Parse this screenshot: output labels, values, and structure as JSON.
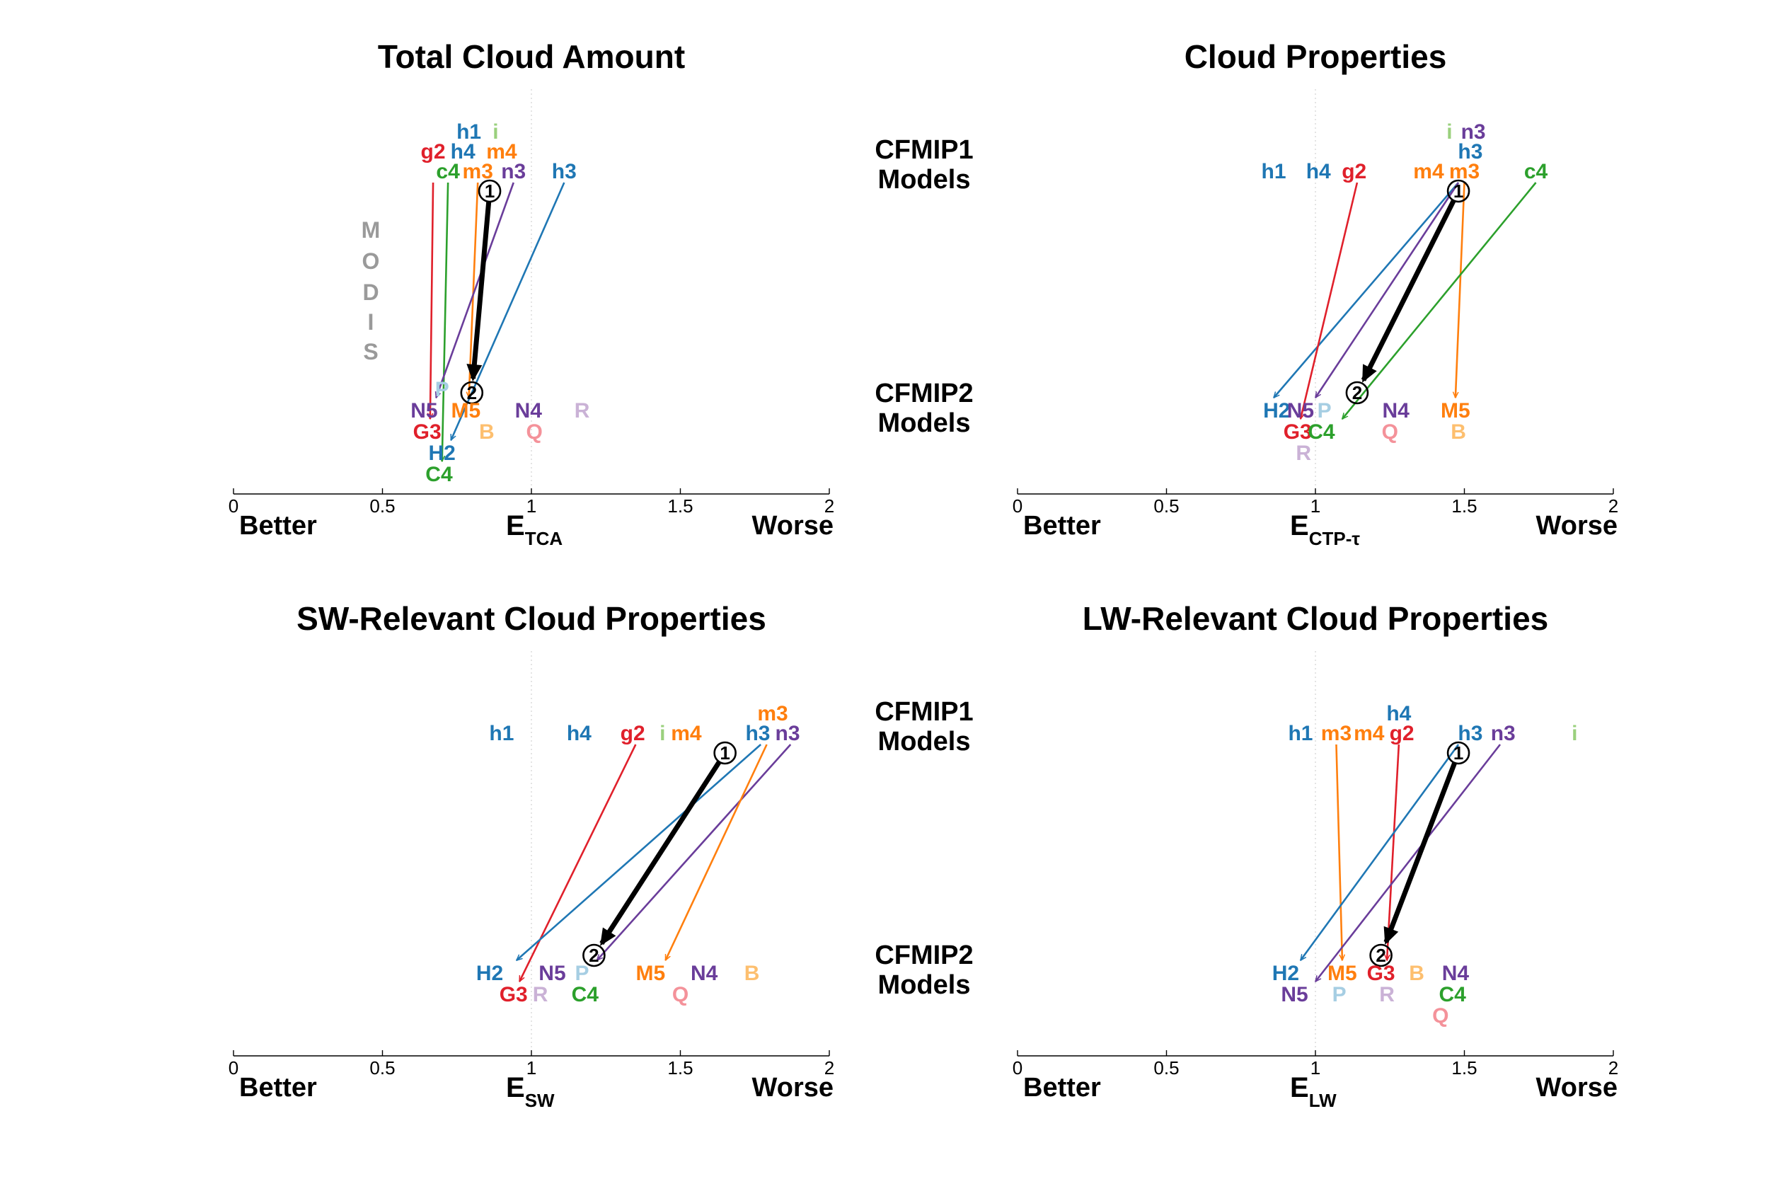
{
  "colors": {
    "h1": "#1f77b4",
    "h2": "#1f77b4",
    "h3": "#1f77b4",
    "h4": "#1f77b4",
    "H2": "#1f77b4",
    "g2": "#e0202b",
    "G3": "#e0202b",
    "c4": "#2ca02c",
    "C4": "#2ca02c",
    "m3": "#ff7f0e",
    "m4": "#ff7f0e",
    "M5": "#ff7f0e",
    "n3": "#6a3d9a",
    "N4": "#6a3d9a",
    "N5": "#6a3d9a",
    "i": "#9ad07d",
    "P": "#a6cee3",
    "B": "#fdbf6f",
    "Q": "#f4929a",
    "R": "#cab2d6",
    "mean": "#000000",
    "grid": "#c8c8c8"
  },
  "group_labels": {
    "top_line1": "CFMIP1",
    "top_line2": "Models",
    "bottom_line1": "CFMIP2",
    "bottom_line2": "Models",
    "modis": [
      "M",
      "O",
      "D",
      "I",
      "S"
    ]
  },
  "chart_data": [
    {
      "type": "scatter",
      "title": "Total Cloud Amount",
      "xlabel_main": "E",
      "xlabel_sub": "TCA",
      "better_label": "Better",
      "worse_label": "Worse",
      "xlim": [
        0,
        2
      ],
      "ticks": [
        "0",
        "0.5",
        "1",
        "1.5",
        "2"
      ],
      "tick_values": [
        0,
        0.5,
        1,
        1.5,
        2
      ],
      "mean_marker_start": "1",
      "mean_marker_end": "2",
      "mean_start": 0.86,
      "mean_end": 0.8,
      "cfmip1": [
        {
          "label": "h1",
          "x": 0.79,
          "row": 0
        },
        {
          "label": "i",
          "x": 0.88,
          "row": 0
        },
        {
          "label": "g2",
          "x": 0.67,
          "row": 1
        },
        {
          "label": "h4",
          "x": 0.77,
          "row": 1
        },
        {
          "label": "m4",
          "x": 0.9,
          "row": 1
        },
        {
          "label": "c4",
          "x": 0.72,
          "row": 2
        },
        {
          "label": "m3",
          "x": 0.82,
          "row": 2
        },
        {
          "label": "n3",
          "x": 0.94,
          "row": 2
        },
        {
          "label": "h3",
          "x": 1.11,
          "row": 2
        }
      ],
      "cfmip2": [
        {
          "label": "P",
          "x": 0.7,
          "row": 0
        },
        {
          "label": "N5",
          "x": 0.64,
          "row": 1
        },
        {
          "label": "M5",
          "x": 0.78,
          "row": 1
        },
        {
          "label": "N4",
          "x": 0.99,
          "row": 1
        },
        {
          "label": "R",
          "x": 1.17,
          "row": 1
        },
        {
          "label": "G3",
          "x": 0.65,
          "row": 2
        },
        {
          "label": "B",
          "x": 0.85,
          "row": 2
        },
        {
          "label": "Q",
          "x": 1.01,
          "row": 2
        },
        {
          "label": "H2",
          "x": 0.7,
          "row": 3
        },
        {
          "label": "C4",
          "x": 0.69,
          "row": 4
        }
      ],
      "arrows": [
        {
          "from": "g2",
          "to": "G3",
          "x0": 0.67,
          "x1": 0.66
        },
        {
          "from": "c4",
          "to": "C4",
          "x0": 0.72,
          "x1": 0.7
        },
        {
          "from": "m3",
          "to": "M5",
          "x0": 0.82,
          "x1": 0.79
        },
        {
          "from": "n3",
          "to": "N5",
          "x0": 0.94,
          "x1": 0.68
        },
        {
          "from": "h3",
          "to": "H2",
          "x0": 1.11,
          "x1": 0.73
        }
      ]
    },
    {
      "type": "scatter",
      "title": "Cloud Properties",
      "xlabel_main": "E",
      "xlabel_sub": "CTP-τ",
      "better_label": "Better",
      "worse_label": "Worse",
      "xlim": [
        0,
        2
      ],
      "ticks": [
        "0",
        "0.5",
        "1",
        "1.5",
        "2"
      ],
      "tick_values": [
        0,
        0.5,
        1,
        1.5,
        2
      ],
      "mean_marker_start": "1",
      "mean_marker_end": "2",
      "mean_start": 1.48,
      "mean_end": 1.14,
      "cfmip1": [
        {
          "label": "i",
          "x": 1.45,
          "row": 0
        },
        {
          "label": "n3",
          "x": 1.53,
          "row": 0
        },
        {
          "label": "h3",
          "x": 1.52,
          "row": 1
        },
        {
          "label": "h1",
          "x": 0.86,
          "row": 2
        },
        {
          "label": "h4",
          "x": 1.01,
          "row": 2
        },
        {
          "label": "g2",
          "x": 1.13,
          "row": 2
        },
        {
          "label": "m4",
          "x": 1.38,
          "row": 2
        },
        {
          "label": "m3",
          "x": 1.5,
          "row": 2
        },
        {
          "label": "c4",
          "x": 1.74,
          "row": 2
        }
      ],
      "cfmip2": [
        {
          "label": "H2",
          "x": 0.87,
          "row": 1
        },
        {
          "label": "N5",
          "x": 0.95,
          "row": 1
        },
        {
          "label": "P",
          "x": 1.03,
          "row": 1
        },
        {
          "label": "N4",
          "x": 1.27,
          "row": 1
        },
        {
          "label": "M5",
          "x": 1.47,
          "row": 1
        },
        {
          "label": "G3",
          "x": 0.94,
          "row": 2
        },
        {
          "label": "C4",
          "x": 1.02,
          "row": 2
        },
        {
          "label": "Q",
          "x": 1.25,
          "row": 2
        },
        {
          "label": "B",
          "x": 1.48,
          "row": 2
        },
        {
          "label": "R",
          "x": 0.96,
          "row": 3
        }
      ],
      "arrows": [
        {
          "from": "h3",
          "to": "H2",
          "x0": 1.48,
          "x1": 0.86
        },
        {
          "from": "g2",
          "to": "G3",
          "x0": 1.14,
          "x1": 0.95
        },
        {
          "from": "n3",
          "to": "N5",
          "x0": 1.48,
          "x1": 1.0
        },
        {
          "from": "m3",
          "to": "M5",
          "x0": 1.5,
          "x1": 1.47
        },
        {
          "from": "c4",
          "to": "C4",
          "x0": 1.74,
          "x1": 1.09
        }
      ]
    },
    {
      "type": "scatter",
      "title": "SW-Relevant Cloud Properties",
      "xlabel_main": "E",
      "xlabel_sub": "SW",
      "better_label": "Better",
      "worse_label": "Worse",
      "xlim": [
        0,
        2
      ],
      "ticks": [
        "0",
        "0.5",
        "1",
        "1.5",
        "2"
      ],
      "tick_values": [
        0,
        0.5,
        1,
        1.5,
        2
      ],
      "mean_marker_start": "1",
      "mean_marker_end": "2",
      "mean_start": 1.65,
      "mean_end": 1.21,
      "cfmip1": [
        {
          "label": "m3",
          "x": 1.81,
          "row": 1
        },
        {
          "label": "h1",
          "x": 0.9,
          "row": 2
        },
        {
          "label": "h4",
          "x": 1.16,
          "row": 2
        },
        {
          "label": "g2",
          "x": 1.34,
          "row": 2
        },
        {
          "label": "i",
          "x": 1.44,
          "row": 2
        },
        {
          "label": "m4",
          "x": 1.52,
          "row": 2
        },
        {
          "label": "h3",
          "x": 1.76,
          "row": 2
        },
        {
          "label": "n3",
          "x": 1.86,
          "row": 2
        }
      ],
      "cfmip2": [
        {
          "label": "H2",
          "x": 0.86,
          "row": 1
        },
        {
          "label": "N5",
          "x": 1.07,
          "row": 1
        },
        {
          "label": "P",
          "x": 1.17,
          "row": 1
        },
        {
          "label": "M5",
          "x": 1.4,
          "row": 1
        },
        {
          "label": "N4",
          "x": 1.58,
          "row": 1
        },
        {
          "label": "B",
          "x": 1.74,
          "row": 1
        },
        {
          "label": "G3",
          "x": 0.94,
          "row": 2
        },
        {
          "label": "R",
          "x": 1.03,
          "row": 2
        },
        {
          "label": "C4",
          "x": 1.18,
          "row": 2
        },
        {
          "label": "Q",
          "x": 1.5,
          "row": 2
        }
      ],
      "arrows": [
        {
          "from": "g2",
          "to": "G3",
          "x0": 1.35,
          "x1": 0.96
        },
        {
          "from": "h3",
          "to": "H2",
          "x0": 1.77,
          "x1": 0.95
        },
        {
          "from": "n3",
          "to": "N5",
          "x0": 1.87,
          "x1": 1.22
        },
        {
          "from": "m3",
          "to": "M5",
          "x0": 1.79,
          "x1": 1.45
        }
      ]
    },
    {
      "type": "scatter",
      "title": "LW-Relevant Cloud Properties",
      "xlabel_main": "E",
      "xlabel_sub": "LW",
      "better_label": "Better",
      "worse_label": "Worse",
      "xlim": [
        0,
        2
      ],
      "ticks": [
        "0",
        "0.5",
        "1",
        "1.5",
        "2"
      ],
      "tick_values": [
        0,
        0.5,
        1,
        1.5,
        2
      ],
      "mean_marker_start": "1",
      "mean_marker_end": "2",
      "mean_start": 1.48,
      "mean_end": 1.22,
      "cfmip1": [
        {
          "label": "h4",
          "x": 1.28,
          "row": 1
        },
        {
          "label": "h1",
          "x": 0.95,
          "row": 2
        },
        {
          "label": "m3",
          "x": 1.07,
          "row": 2
        },
        {
          "label": "m4",
          "x": 1.18,
          "row": 2
        },
        {
          "label": "g2",
          "x": 1.29,
          "row": 2
        },
        {
          "label": "h3",
          "x": 1.52,
          "row": 2
        },
        {
          "label": "n3",
          "x": 1.63,
          "row": 2
        },
        {
          "label": "i",
          "x": 1.87,
          "row": 2
        }
      ],
      "cfmip2": [
        {
          "label": "H2",
          "x": 0.9,
          "row": 1
        },
        {
          "label": "M5",
          "x": 1.09,
          "row": 1
        },
        {
          "label": "G3",
          "x": 1.22,
          "row": 1
        },
        {
          "label": "B",
          "x": 1.34,
          "row": 1
        },
        {
          "label": "N4",
          "x": 1.47,
          "row": 1
        },
        {
          "label": "N5",
          "x": 0.93,
          "row": 2
        },
        {
          "label": "P",
          "x": 1.08,
          "row": 2
        },
        {
          "label": "R",
          "x": 1.24,
          "row": 2
        },
        {
          "label": "C4",
          "x": 1.46,
          "row": 2
        },
        {
          "label": "Q",
          "x": 1.42,
          "row": 3
        }
      ],
      "arrows": [
        {
          "from": "m3",
          "to": "M5",
          "x0": 1.07,
          "x1": 1.09
        },
        {
          "from": "g2",
          "to": "G3",
          "x0": 1.28,
          "x1": 1.24
        },
        {
          "from": "h3",
          "to": "H2",
          "x0": 1.48,
          "x1": 0.95
        },
        {
          "from": "n3",
          "to": "N5",
          "x0": 1.62,
          "x1": 1.0
        }
      ]
    }
  ]
}
